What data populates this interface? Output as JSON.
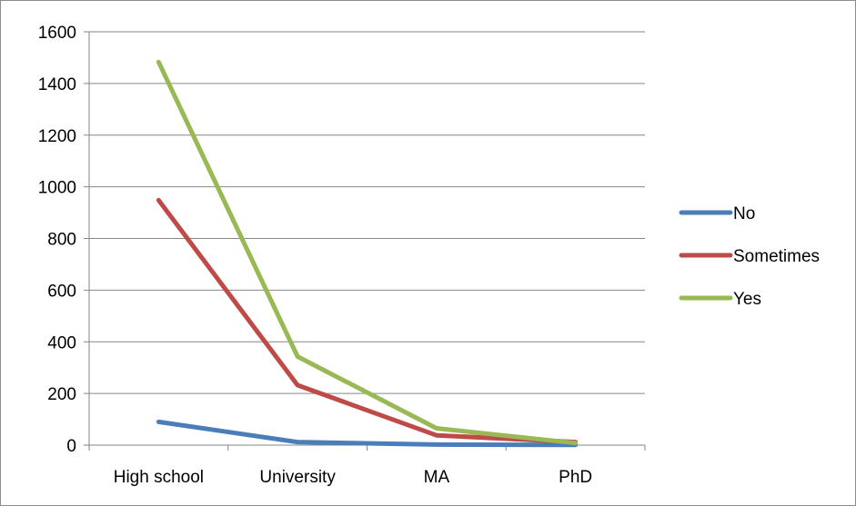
{
  "chart_data": {
    "type": "line",
    "categories": [
      "High school",
      "University",
      "MA",
      "PhD"
    ],
    "series": [
      {
        "name": "No",
        "values": [
          90,
          12,
          2,
          1
        ],
        "color": "#4a7ebb"
      },
      {
        "name": "Sometimes",
        "values": [
          948,
          232,
          38,
          12
        ],
        "color": "#be4b48"
      },
      {
        "name": "Yes",
        "values": [
          1483,
          343,
          65,
          8
        ],
        "color": "#98b954"
      }
    ],
    "ylim": [
      0,
      1600
    ],
    "yticks": [
      0,
      200,
      400,
      600,
      800,
      1000,
      1200,
      1400,
      1600
    ],
    "grid": true,
    "legend": "right"
  }
}
